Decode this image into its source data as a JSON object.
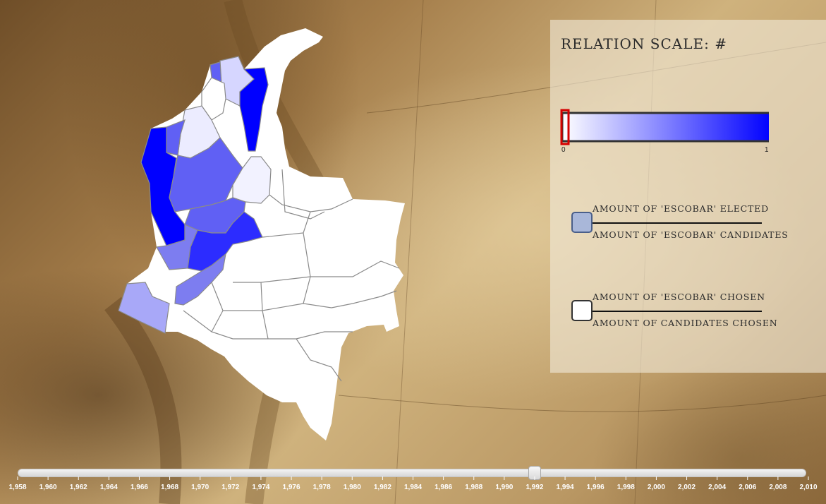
{
  "legend": {
    "title": "RELATION SCALE: #",
    "scale": {
      "min_label": "0",
      "max_label": "1",
      "color_start": "#ffffff",
      "color_end": "#0000ff",
      "selected_value": 0
    },
    "rows": [
      {
        "top": "AMOUNT OF 'ESCOBAR' ELECTED",
        "bottom": "AMOUNT OF 'ESCOBAR' CANDIDATES",
        "swatch_color": "#a9b7d9"
      },
      {
        "top": "AMOUNT OF 'ESCOBAR' CHOSEN",
        "bottom": "AMOUNT OF CANDIDATES CHOSEN",
        "swatch_color": "#ffffff"
      }
    ]
  },
  "timeline": {
    "years": [
      1958,
      1960,
      1962,
      1964,
      1966,
      1968,
      1970,
      1972,
      1974,
      1976,
      1978,
      1980,
      1982,
      1984,
      1986,
      1988,
      1990,
      1992,
      1994,
      1996,
      1998,
      2000,
      2002,
      2004,
      2006,
      2008,
      2010
    ],
    "tick_labels": [
      "1,958",
      "1,960",
      "1,962",
      "1,964",
      "1,966",
      "1,968",
      "1,970",
      "1,972",
      "1,974",
      "1,976",
      "1,978",
      "1,980",
      "1,982",
      "1,984",
      "1,986",
      "1,988",
      "1,990",
      "1,992",
      "1,994",
      "1,996",
      "1,998",
      "2,000",
      "2,002",
      "2,004",
      "2,006",
      "2,008",
      "2,010"
    ],
    "selected_year": 1992
  },
  "map": {
    "colors": {
      "full": "#0000ff",
      "high": "#2c2cff",
      "mid": "#6060f4",
      "light": "#7d7df0",
      "pale": "#a8a8f8",
      "faint": "#d6d6ff",
      "faintest": "#ececff",
      "empty": "#ffffff",
      "border": "#8a8a8a"
    }
  }
}
